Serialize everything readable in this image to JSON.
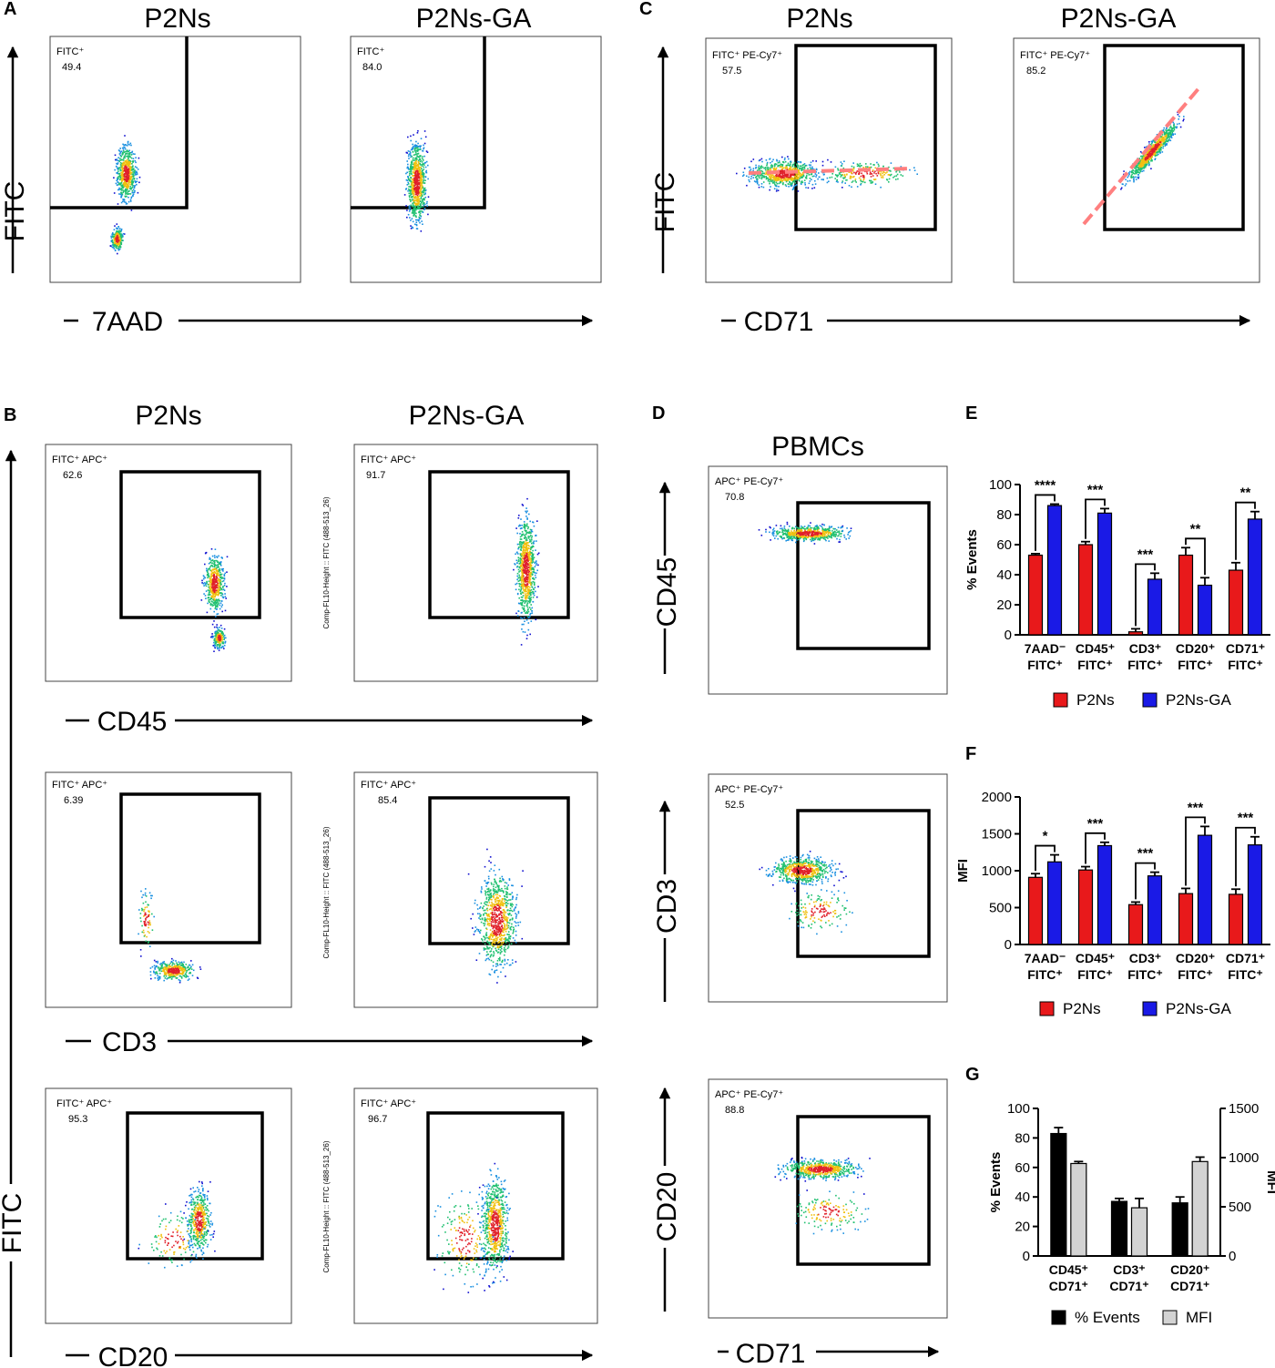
{
  "colors": {
    "p2ns": "#e8191b",
    "p2nsga": "#1a1ae6",
    "pct": "#000000",
    "mfi": "#d3d3d3",
    "gate": "#000000",
    "trend": "#ff7f7f"
  },
  "panel_letters": [
    "A",
    "B",
    "C",
    "D",
    "E",
    "F",
    "G"
  ],
  "condition_titles": {
    "a_left": "P2Ns",
    "a_right": "P2Ns-GA",
    "b_left": "P2Ns",
    "b_right": "P2Ns-GA",
    "c_left": "P2Ns",
    "c_right": "P2Ns-GA",
    "d": "PBMCs"
  },
  "big_axis_labels": {
    "a_y": "FITC",
    "a_x": "7AAD",
    "c_y": "FITC",
    "c_x": "CD71",
    "b_y": "FITC",
    "b_x1": "CD45",
    "b_x2": "CD3",
    "b_x3": "CD20",
    "d_y1": "CD45",
    "d_y2": "CD3",
    "d_y3": "CD20",
    "d_x": "CD71"
  },
  "dot_plots": [
    {
      "id": "A1",
      "gate": "FITC⁺",
      "value": "49.4"
    },
    {
      "id": "A2",
      "gate": "FITC⁺",
      "value": "84.0"
    },
    {
      "id": "C1",
      "gate": "FITC⁺ PE-Cy7⁺",
      "value": "57.5"
    },
    {
      "id": "C2",
      "gate": "FITC⁺ PE-Cy7⁺",
      "value": "85.2"
    },
    {
      "id": "B1",
      "gate": "FITC⁺  APC⁺",
      "value": "62.6"
    },
    {
      "id": "B2",
      "gate": "FITC⁺  APC⁺",
      "value": "91.7",
      "side_label": "Comp-FL10-Height :: FITC (488-513_26)"
    },
    {
      "id": "B3",
      "gate": "FITC⁺  APC⁺",
      "value": "6.39"
    },
    {
      "id": "B4",
      "gate": "FITC⁺  APC⁺",
      "value": "85.4",
      "side_label": "Comp-FL10-Height :: FITC (488-513_26)"
    },
    {
      "id": "B5",
      "gate": "FITC⁺  APC⁺",
      "value": "95.3"
    },
    {
      "id": "B6",
      "gate": "FITC⁺  APC⁺",
      "value": "96.7",
      "side_label": "Comp-FL10-Height :: FITC (488-513_26)"
    },
    {
      "id": "D1",
      "gate": "APC⁺ PE-Cy7⁺",
      "value": "70.8"
    },
    {
      "id": "D2",
      "gate": "APC⁺ PE-Cy7⁺",
      "value": "52.5"
    },
    {
      "id": "D3",
      "gate": "APC⁺ PE-Cy7⁺",
      "value": "88.8"
    }
  ],
  "chart_data": [
    {
      "panel": "E",
      "type": "bar",
      "ylabel": "% Events",
      "ylim": [
        0,
        100
      ],
      "yticks": [
        0,
        20,
        40,
        60,
        80,
        100
      ],
      "categories": [
        [
          "7AAD⁻",
          "FITC⁺"
        ],
        [
          "CD45⁺",
          "FITC⁺"
        ],
        [
          "CD3⁺",
          "FITC⁺"
        ],
        [
          "CD20⁺",
          "FITC⁺"
        ],
        [
          "CD71⁺",
          "FITC⁺"
        ]
      ],
      "series": [
        {
          "name": "P2Ns",
          "values": [
            53,
            60,
            2,
            53,
            43
          ],
          "errors": [
            1,
            2,
            2,
            5,
            5
          ]
        },
        {
          "name": "P2Ns-GA",
          "values": [
            86,
            81,
            37,
            33,
            77
          ],
          "errors": [
            1,
            3,
            4,
            5,
            5
          ]
        }
      ],
      "significance": [
        "****",
        "***",
        "***",
        "**",
        "**"
      ]
    },
    {
      "panel": "F",
      "type": "bar",
      "ylabel": "MFI",
      "ylim": [
        0,
        2000
      ],
      "yticks": [
        0,
        500,
        1000,
        1500,
        2000
      ],
      "categories": [
        [
          "7AAD⁻",
          "FITC⁺"
        ],
        [
          "CD45⁺",
          "FITC⁺"
        ],
        [
          "CD3⁺",
          "FITC⁺"
        ],
        [
          "CD20⁺",
          "FITC⁺"
        ],
        [
          "CD71⁺",
          "FITC⁺"
        ]
      ],
      "series": [
        {
          "name": "P2Ns",
          "values": [
            910,
            1010,
            540,
            690,
            680
          ],
          "errors": [
            50,
            45,
            35,
            70,
            70
          ]
        },
        {
          "name": "P2Ns-GA",
          "values": [
            1120,
            1340,
            930,
            1480,
            1350
          ],
          "errors": [
            95,
            45,
            50,
            120,
            110
          ]
        }
      ],
      "significance": [
        "*",
        "***",
        "***",
        "***",
        "***"
      ]
    },
    {
      "panel": "G",
      "type": "bar",
      "ylabel": "% Events",
      "y2label": "MFI",
      "ylim": [
        0,
        100
      ],
      "yticks": [
        0,
        20,
        40,
        60,
        80,
        100
      ],
      "y2lim": [
        0,
        1500
      ],
      "y2ticks": [
        0,
        500,
        1000,
        1500
      ],
      "categories": [
        [
          "CD45⁺",
          "CD71⁺"
        ],
        [
          "CD3⁺",
          "CD71⁺"
        ],
        [
          "CD20⁺",
          "CD71⁺"
        ]
      ],
      "series": [
        {
          "name": "% Events",
          "values": [
            83,
            37,
            36
          ],
          "errors": [
            4,
            2,
            4
          ],
          "axis": "left"
        },
        {
          "name": "MFI",
          "values": [
            940,
            490,
            960
          ],
          "errors": [
            20,
            95,
            45
          ],
          "axis": "right"
        }
      ]
    }
  ]
}
